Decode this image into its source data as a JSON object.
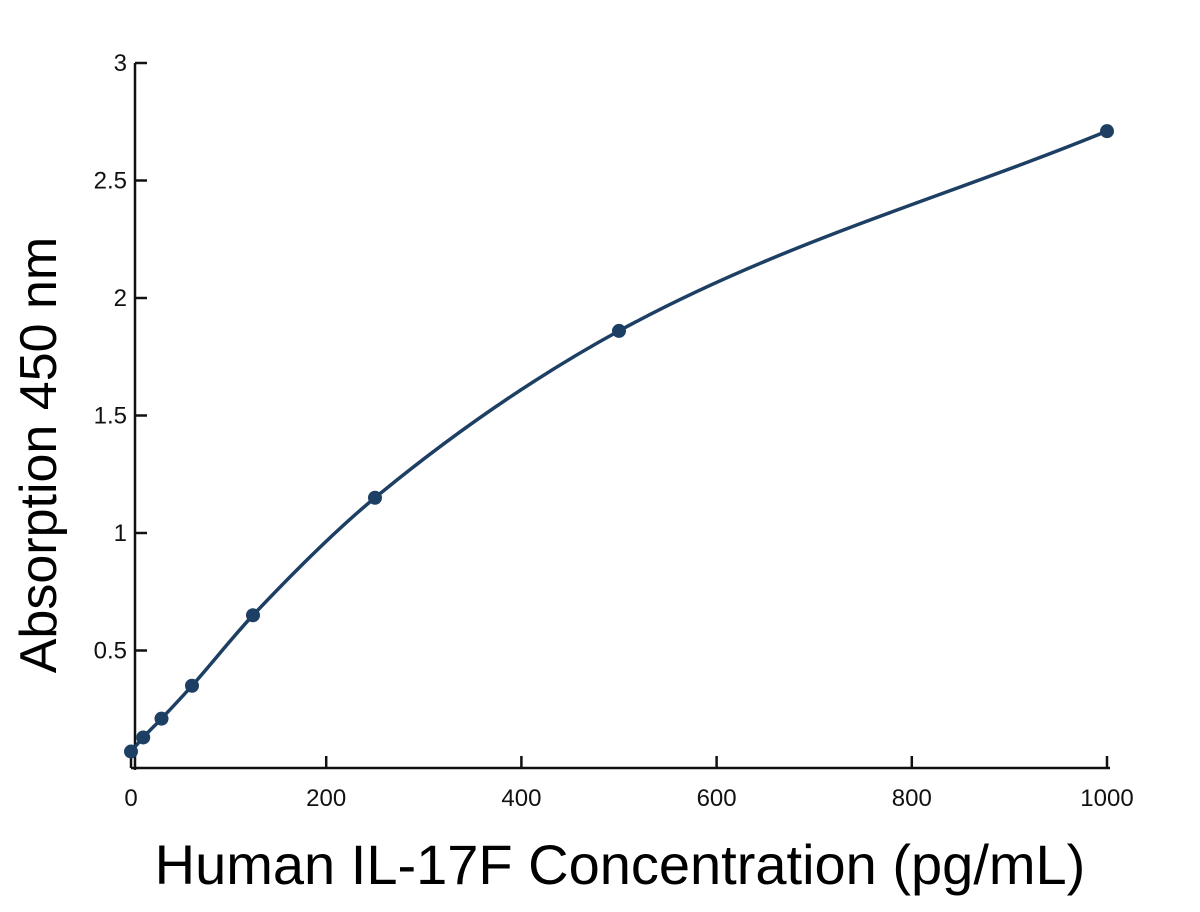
{
  "chart_data": {
    "type": "line",
    "title": "",
    "xlabel": "Human IL-17F Concentration (pg/mL)",
    "ylabel": "Absorption 450 nm",
    "xlim": [
      0,
      1000
    ],
    "ylim": [
      0,
      3
    ],
    "x_ticks": [
      0,
      200,
      400,
      600,
      800,
      1000
    ],
    "x_tick_labels": [
      "0",
      "200",
      "400",
      "600",
      "800",
      "1000"
    ],
    "y_ticks": [
      0.5,
      1,
      1.5,
      2,
      2.5,
      3
    ],
    "y_tick_labels": [
      "0.5",
      "1",
      "1.5",
      "2",
      "2.5",
      "3"
    ],
    "grid": false,
    "legend": "none",
    "series": [
      {
        "color": "#1d3f63",
        "x": [
          0,
          12.5,
          31.25,
          62.5,
          125,
          250,
          500,
          1000
        ],
        "y": [
          0.07,
          0.13,
          0.21,
          0.35,
          0.65,
          1.15,
          1.86,
          2.71
        ]
      }
    ]
  }
}
